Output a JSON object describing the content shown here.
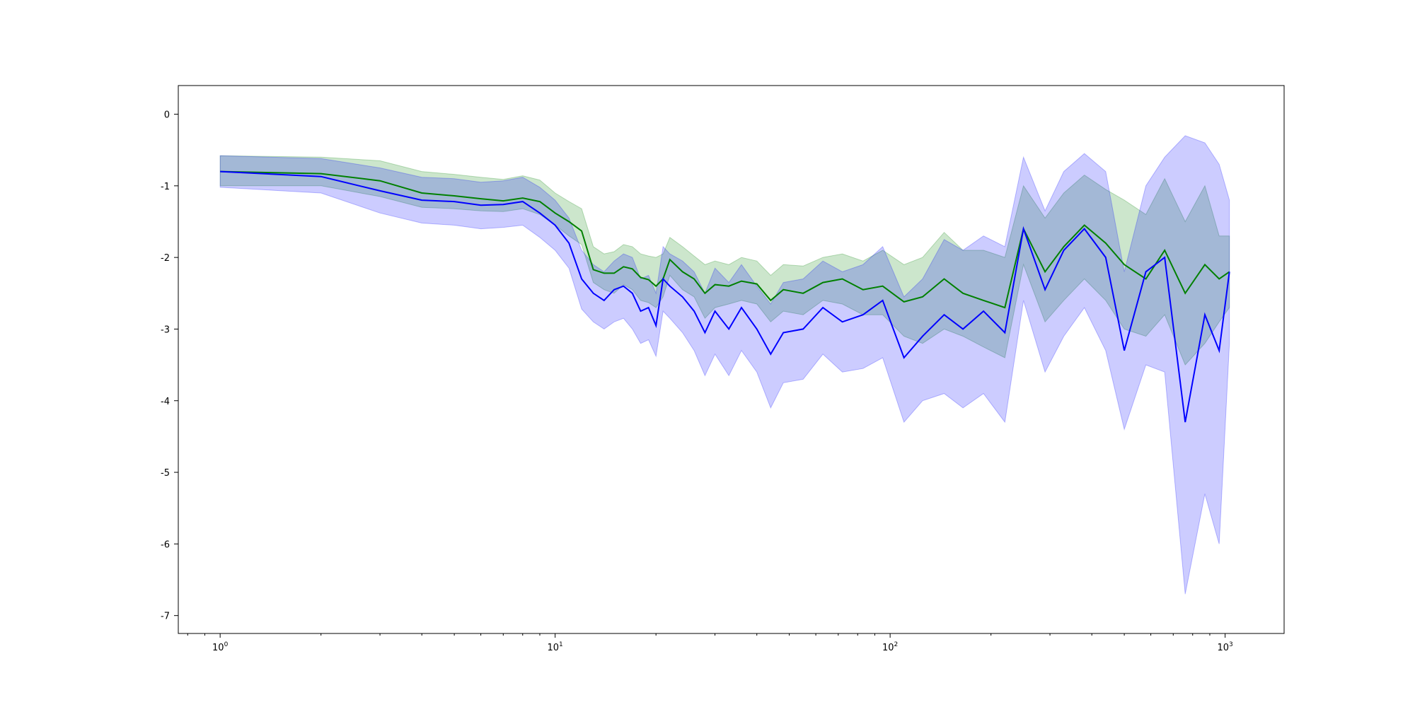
{
  "chart_data": {
    "type": "line",
    "title": "",
    "xlabel": "",
    "ylabel": "",
    "xscale": "log",
    "xlim": [
      0.75,
      1500
    ],
    "ylim": [
      -7.25,
      0.4
    ],
    "grid": false,
    "legend": "none",
    "x_ticks": [
      {
        "value": 1,
        "base": "10",
        "exp": "0"
      },
      {
        "value": 10,
        "base": "10",
        "exp": "1"
      },
      {
        "value": 100,
        "base": "10",
        "exp": "2"
      },
      {
        "value": 1000,
        "base": "10",
        "exp": "3"
      }
    ],
    "y_ticks": [
      {
        "value": 0,
        "label": "0"
      },
      {
        "value": -1,
        "label": "-1"
      },
      {
        "value": -2,
        "label": "-2"
      },
      {
        "value": -3,
        "label": "-3"
      },
      {
        "value": -4,
        "label": "-4"
      },
      {
        "value": -5,
        "label": "-5"
      },
      {
        "value": -6,
        "label": "-6"
      },
      {
        "value": -7,
        "label": "-7"
      }
    ],
    "series": [
      {
        "color": "#008000",
        "band_color": "#008000",
        "band_opacity": 0.2,
        "x": [
          1,
          2,
          3,
          4,
          5,
          6,
          7,
          8,
          9,
          10,
          11,
          12,
          13,
          14,
          15,
          16,
          17,
          18,
          19,
          20,
          21,
          22,
          24,
          26,
          28,
          30,
          33,
          36,
          40,
          44,
          48,
          55,
          63,
          72,
          83,
          95,
          110,
          125,
          145,
          165,
          190,
          220,
          250,
          290,
          330,
          380,
          440,
          500,
          580,
          660,
          760,
          870,
          960,
          1030
        ],
        "y": [
          -0.8,
          -0.83,
          -0.93,
          -1.1,
          -1.14,
          -1.18,
          -1.21,
          -1.17,
          -1.22,
          -1.38,
          -1.5,
          -1.63,
          -2.17,
          -2.22,
          -2.22,
          -2.13,
          -2.16,
          -2.28,
          -2.31,
          -2.4,
          -2.3,
          -2.03,
          -2.2,
          -2.3,
          -2.5,
          -2.38,
          -2.4,
          -2.33,
          -2.37,
          -2.6,
          -2.45,
          -2.5,
          -2.35,
          -2.3,
          -2.45,
          -2.4,
          -2.62,
          -2.55,
          -2.3,
          -2.5,
          -2.6,
          -2.7,
          -1.6,
          -2.2,
          -1.85,
          -1.55,
          -1.8,
          -2.1,
          -2.3,
          -1.9,
          -2.5,
          -2.1,
          -2.3,
          -2.2
        ],
        "lower": [
          -1.0,
          -1.0,
          -1.15,
          -1.3,
          -1.32,
          -1.35,
          -1.36,
          -1.32,
          -1.4,
          -1.55,
          -1.7,
          -1.82,
          -2.35,
          -2.45,
          -2.5,
          -2.38,
          -2.45,
          -2.6,
          -2.63,
          -2.7,
          -2.55,
          -2.25,
          -2.45,
          -2.55,
          -2.85,
          -2.7,
          -2.65,
          -2.6,
          -2.65,
          -2.9,
          -2.75,
          -2.8,
          -2.6,
          -2.65,
          -2.8,
          -2.8,
          -3.1,
          -3.2,
          -3.0,
          -3.1,
          -3.25,
          -3.4,
          -2.1,
          -2.9,
          -2.6,
          -2.3,
          -2.6,
          -3.0,
          -3.1,
          -2.8,
          -3.5,
          -3.2,
          -2.9,
          -2.7
        ],
        "upper": [
          -0.58,
          -0.6,
          -0.65,
          -0.8,
          -0.84,
          -0.88,
          -0.91,
          -0.86,
          -0.92,
          -1.1,
          -1.22,
          -1.32,
          -1.85,
          -1.95,
          -1.92,
          -1.82,
          -1.85,
          -1.95,
          -1.98,
          -2.0,
          -1.95,
          -1.72,
          -1.85,
          -1.98,
          -2.1,
          -2.05,
          -2.1,
          -2.0,
          -2.05,
          -2.25,
          -2.1,
          -2.12,
          -2.0,
          -1.95,
          -2.05,
          -1.9,
          -2.1,
          -2.0,
          -1.65,
          -1.9,
          -1.9,
          -2.0,
          -1.0,
          -1.45,
          -1.1,
          -0.85,
          -1.05,
          -1.2,
          -1.4,
          -0.9,
          -1.5,
          -1.0,
          -1.7,
          -1.7
        ]
      },
      {
        "color": "#0000ff",
        "band_color": "#0000ff",
        "band_opacity": 0.2,
        "x": [
          1,
          2,
          3,
          4,
          5,
          6,
          7,
          8,
          9,
          10,
          11,
          12,
          13,
          14,
          15,
          16,
          17,
          18,
          19,
          20,
          21,
          22,
          24,
          26,
          28,
          30,
          33,
          36,
          40,
          44,
          48,
          55,
          63,
          72,
          83,
          95,
          110,
          125,
          145,
          165,
          190,
          220,
          250,
          290,
          330,
          380,
          440,
          500,
          580,
          660,
          760,
          870,
          960,
          1030
        ],
        "y": [
          -0.8,
          -0.87,
          -1.07,
          -1.2,
          -1.22,
          -1.27,
          -1.26,
          -1.22,
          -1.38,
          -1.55,
          -1.8,
          -2.3,
          -2.5,
          -2.6,
          -2.45,
          -2.4,
          -2.5,
          -2.75,
          -2.7,
          -2.95,
          -2.3,
          -2.4,
          -2.55,
          -2.75,
          -3.05,
          -2.75,
          -3.0,
          -2.7,
          -3.0,
          -3.35,
          -3.05,
          -3.0,
          -2.7,
          -2.9,
          -2.8,
          -2.6,
          -3.4,
          -3.1,
          -2.8,
          -3.0,
          -2.75,
          -3.05,
          -1.6,
          -2.45,
          -1.9,
          -1.6,
          -2.0,
          -3.3,
          -2.2,
          -2.0,
          -4.3,
          -2.8,
          -3.3,
          -2.2
        ],
        "lower": [
          -1.02,
          -1.1,
          -1.38,
          -1.52,
          -1.55,
          -1.6,
          -1.58,
          -1.55,
          -1.72,
          -1.9,
          -2.15,
          -2.72,
          -2.9,
          -3.0,
          -2.9,
          -2.85,
          -3.0,
          -3.2,
          -3.15,
          -3.38,
          -2.75,
          -2.85,
          -3.05,
          -3.3,
          -3.65,
          -3.35,
          -3.65,
          -3.3,
          -3.6,
          -4.1,
          -3.75,
          -3.7,
          -3.35,
          -3.6,
          -3.55,
          -3.4,
          -4.3,
          -4.0,
          -3.9,
          -4.1,
          -3.9,
          -4.3,
          -2.6,
          -3.6,
          -3.1,
          -2.7,
          -3.3,
          -4.4,
          -3.5,
          -3.6,
          -6.7,
          -5.3,
          -6.0,
          -3.2
        ],
        "upper": [
          -0.58,
          -0.62,
          -0.75,
          -0.88,
          -0.9,
          -0.95,
          -0.93,
          -0.88,
          -1.02,
          -1.2,
          -1.45,
          -1.9,
          -2.1,
          -2.2,
          -2.05,
          -1.95,
          -2.0,
          -2.3,
          -2.25,
          -2.5,
          -1.85,
          -1.95,
          -2.05,
          -2.2,
          -2.5,
          -2.15,
          -2.35,
          -2.1,
          -2.4,
          -2.65,
          -2.35,
          -2.3,
          -2.05,
          -2.2,
          -2.1,
          -1.85,
          -2.55,
          -2.3,
          -1.75,
          -1.9,
          -1.7,
          -1.85,
          -0.6,
          -1.35,
          -0.8,
          -0.55,
          -0.8,
          -2.2,
          -1.0,
          -0.6,
          -0.3,
          -0.4,
          -0.7,
          -1.2
        ]
      }
    ]
  }
}
